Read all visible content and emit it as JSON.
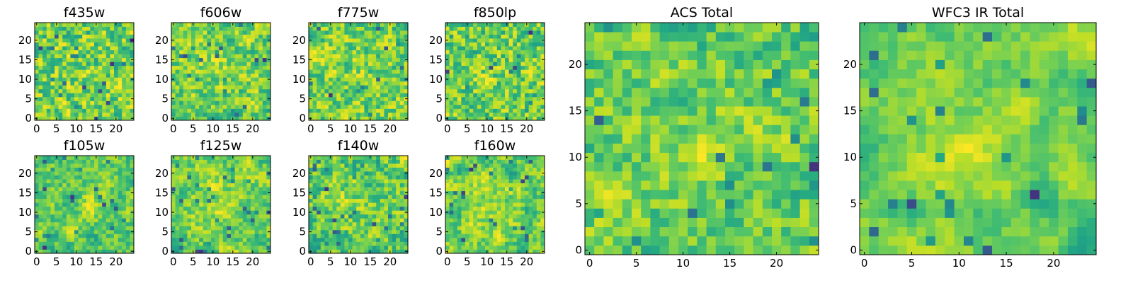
{
  "chart_data": [
    {
      "id": "f435w",
      "type": "heatmap",
      "title": "f435w",
      "xlim": [
        -0.5,
        24.5
      ],
      "ylim": [
        -0.5,
        24.5
      ],
      "xticks": [
        0,
        5,
        10,
        15,
        20
      ],
      "yticks": [
        0,
        5,
        10,
        15,
        20
      ],
      "grid": false,
      "colormap": "viridis",
      "origin": "lower",
      "pixels": 25,
      "seed": 11,
      "smooth": 0.15
    },
    {
      "id": "f606w",
      "type": "heatmap",
      "title": "f606w",
      "xlim": [
        -0.5,
        24.5
      ],
      "ylim": [
        -0.5,
        24.5
      ],
      "xticks": [
        0,
        5,
        10,
        15,
        20
      ],
      "yticks": [
        0,
        5,
        10,
        15,
        20
      ],
      "grid": false,
      "colormap": "viridis",
      "origin": "lower",
      "pixels": 25,
      "seed": 22,
      "smooth": 0.35
    },
    {
      "id": "f775w",
      "type": "heatmap",
      "title": "f775w",
      "xlim": [
        -0.5,
        24.5
      ],
      "ylim": [
        -0.5,
        24.5
      ],
      "xticks": [
        0,
        5,
        10,
        15,
        20
      ],
      "yticks": [
        0,
        5,
        10,
        15,
        20
      ],
      "grid": false,
      "colormap": "viridis",
      "origin": "lower",
      "pixels": 25,
      "seed": 33,
      "smooth": 0.3
    },
    {
      "id": "f850lp",
      "type": "heatmap",
      "title": "f850lp",
      "xlim": [
        -0.5,
        24.5
      ],
      "ylim": [
        -0.5,
        24.5
      ],
      "xticks": [
        0,
        5,
        10,
        15,
        20
      ],
      "yticks": [
        0,
        5,
        10,
        15,
        20
      ],
      "grid": false,
      "colormap": "viridis",
      "origin": "lower",
      "pixels": 25,
      "seed": 44,
      "smooth": 0.2
    },
    {
      "id": "f105w",
      "type": "heatmap",
      "title": "f105w",
      "xlim": [
        -0.5,
        24.5
      ],
      "ylim": [
        -0.5,
        24.5
      ],
      "xticks": [
        0,
        5,
        10,
        15,
        20
      ],
      "yticks": [
        0,
        5,
        10,
        15,
        20
      ],
      "grid": false,
      "colormap": "viridis",
      "origin": "lower",
      "pixels": 25,
      "seed": 55,
      "smooth": 0.55
    },
    {
      "id": "f125w",
      "type": "heatmap",
      "title": "f125w",
      "xlim": [
        -0.5,
        24.5
      ],
      "ylim": [
        -0.5,
        24.5
      ],
      "xticks": [
        0,
        5,
        10,
        15,
        20
      ],
      "yticks": [
        0,
        5,
        10,
        15,
        20
      ],
      "grid": false,
      "colormap": "viridis",
      "origin": "lower",
      "pixels": 25,
      "seed": 66,
      "smooth": 0.5
    },
    {
      "id": "f140w",
      "type": "heatmap",
      "title": "f140w",
      "xlim": [
        -0.5,
        24.5
      ],
      "ylim": [
        -0.5,
        24.5
      ],
      "xticks": [
        0,
        5,
        10,
        15,
        20
      ],
      "yticks": [
        0,
        5,
        10,
        15,
        20
      ],
      "grid": false,
      "colormap": "viridis",
      "origin": "lower",
      "pixels": 25,
      "seed": 77,
      "smooth": 0.45
    },
    {
      "id": "f160w",
      "type": "heatmap",
      "title": "f160w",
      "xlim": [
        -0.5,
        24.5
      ],
      "ylim": [
        -0.5,
        24.5
      ],
      "xticks": [
        0,
        5,
        10,
        15,
        20
      ],
      "yticks": [
        0,
        5,
        10,
        15,
        20
      ],
      "grid": false,
      "colormap": "viridis",
      "origin": "lower",
      "pixels": 25,
      "seed": 88,
      "smooth": 0.6
    },
    {
      "id": "acs-total",
      "type": "heatmap",
      "title": "ACS Total",
      "xlim": [
        -0.5,
        24.5
      ],
      "ylim": [
        -0.5,
        24.5
      ],
      "xticks": [
        0,
        5,
        10,
        15,
        20
      ],
      "yticks": [
        0,
        5,
        10,
        15,
        20
      ],
      "grid": false,
      "colormap": "viridis",
      "origin": "lower",
      "pixels": 25,
      "seed": 99,
      "smooth": 0.45
    },
    {
      "id": "wfc3-ir-total",
      "type": "heatmap",
      "title": "WFC3 IR Total",
      "xlim": [
        -0.5,
        24.5
      ],
      "ylim": [
        -0.5,
        24.5
      ],
      "xticks": [
        0,
        5,
        10,
        15,
        20
      ],
      "yticks": [
        0,
        5,
        10,
        15,
        20
      ],
      "grid": false,
      "colormap": "viridis",
      "origin": "lower",
      "pixels": 25,
      "seed": 123,
      "smooth": 0.75
    }
  ]
}
